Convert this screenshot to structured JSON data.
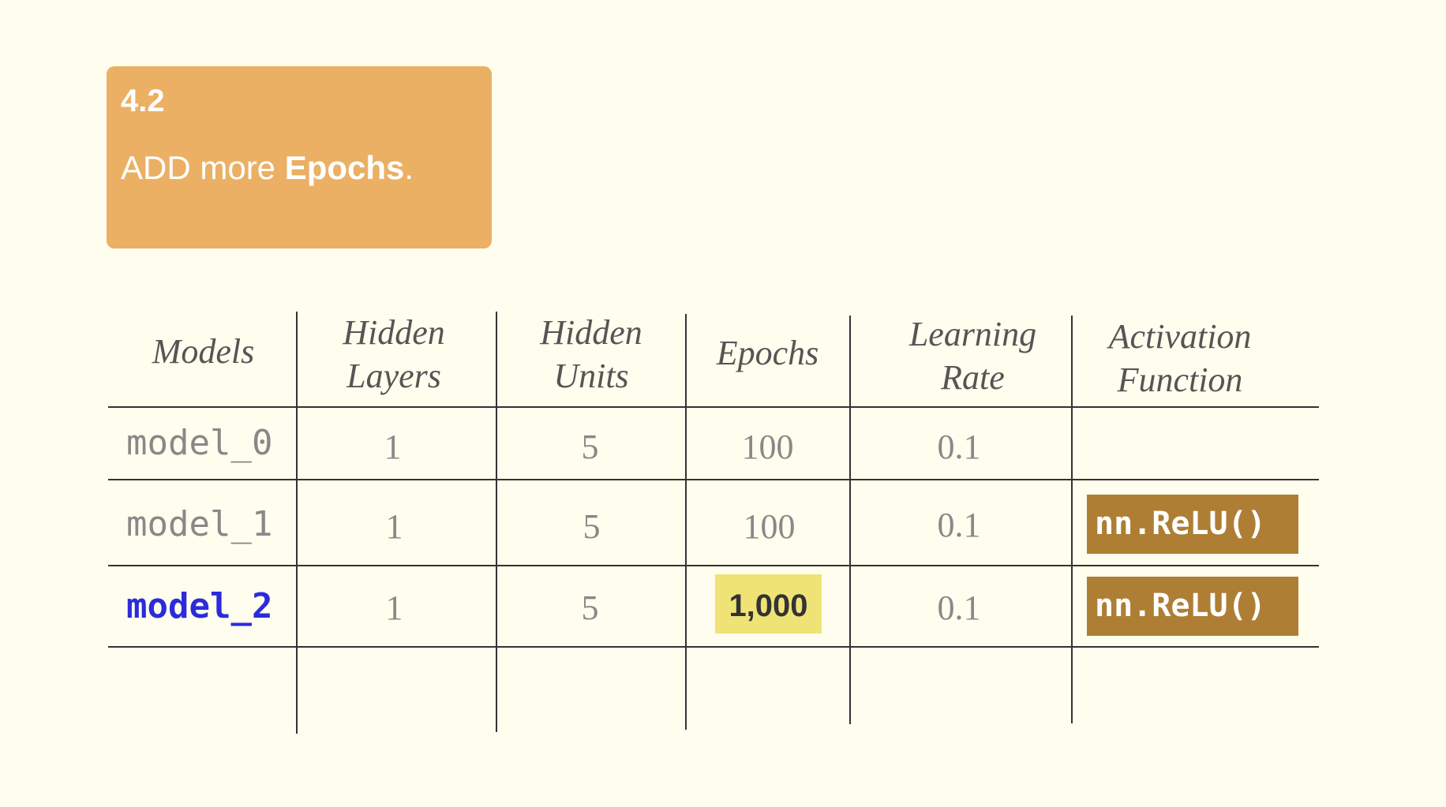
{
  "callout": {
    "number": "4.2",
    "text_prefix": "ADD more ",
    "text_bold": "Epochs",
    "text_suffix": "."
  },
  "table": {
    "headers": [
      {
        "line1": "Models",
        "line2": ""
      },
      {
        "line1": "Hidden",
        "line2": "Layers"
      },
      {
        "line1": "Hidden",
        "line2": "Units"
      },
      {
        "line1": "Epochs",
        "line2": ""
      },
      {
        "line1": "Learning",
        "line2": "Rate"
      },
      {
        "line1": "Activation",
        "line2": "Function"
      }
    ],
    "rows": [
      {
        "model": "model_0",
        "hidden_layers": "1",
        "hidden_units": "5",
        "epochs": "100",
        "learning_rate": "0.1",
        "activation": ""
      },
      {
        "model": "model_1",
        "hidden_layers": "1",
        "hidden_units": "5",
        "epochs": "100",
        "learning_rate": "0.1",
        "activation": "nn.ReLU()"
      },
      {
        "model": "model_2",
        "hidden_layers": "1",
        "hidden_units": "5",
        "epochs": "1,000",
        "learning_rate": "0.1",
        "activation": "nn.ReLU()"
      }
    ]
  },
  "colors": {
    "background": "#fefdee",
    "callout": "#ebb064",
    "active_model": "#2b2bdc",
    "epochs_highlight": "#efe376",
    "activation_badge": "#ae7e34"
  }
}
